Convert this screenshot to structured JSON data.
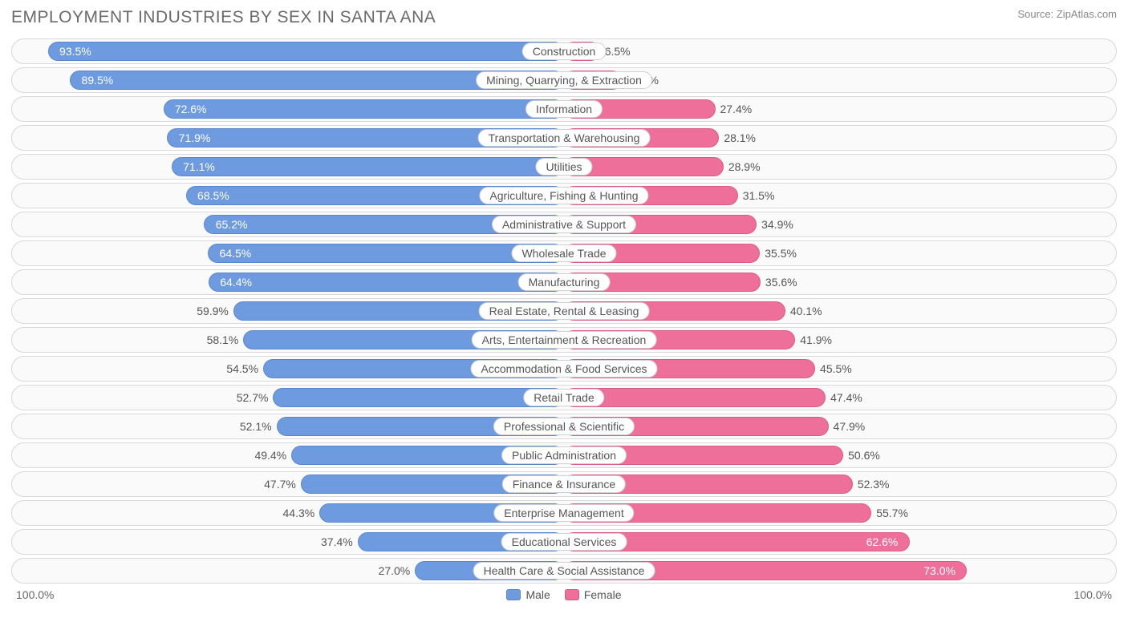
{
  "title": "EMPLOYMENT INDUSTRIES BY SEX IN SANTA ANA",
  "source": "Source: ZipAtlas.com",
  "chart": {
    "type": "diverging-bar",
    "male_color": "#6e9be0",
    "female_color": "#ef6f9b",
    "track_bg": "#fafafa",
    "track_border": "#d8d8d8",
    "label_bg": "#ffffff",
    "text_color": "#555555",
    "title_color": "#6a6a6a",
    "half_width_pct": 50,
    "axis_left": "100.0%",
    "axis_right": "100.0%",
    "legend": {
      "male": "Male",
      "female": "Female"
    },
    "rows": [
      {
        "label": "Construction",
        "male": 93.5,
        "female": 6.5,
        "male_inside": true,
        "female_inside": false
      },
      {
        "label": "Mining, Quarrying, & Extraction",
        "male": 89.5,
        "female": 10.5,
        "male_inside": true,
        "female_inside": false
      },
      {
        "label": "Information",
        "male": 72.6,
        "female": 27.4,
        "male_inside": true,
        "female_inside": false
      },
      {
        "label": "Transportation & Warehousing",
        "male": 71.9,
        "female": 28.1,
        "male_inside": true,
        "female_inside": false
      },
      {
        "label": "Utilities",
        "male": 71.1,
        "female": 28.9,
        "male_inside": true,
        "female_inside": false
      },
      {
        "label": "Agriculture, Fishing & Hunting",
        "male": 68.5,
        "female": 31.5,
        "male_inside": true,
        "female_inside": false
      },
      {
        "label": "Administrative & Support",
        "male": 65.2,
        "female": 34.9,
        "male_inside": true,
        "female_inside": false
      },
      {
        "label": "Wholesale Trade",
        "male": 64.5,
        "female": 35.5,
        "male_inside": true,
        "female_inside": false
      },
      {
        "label": "Manufacturing",
        "male": 64.4,
        "female": 35.6,
        "male_inside": true,
        "female_inside": false
      },
      {
        "label": "Real Estate, Rental & Leasing",
        "male": 59.9,
        "female": 40.1,
        "male_inside": false,
        "female_inside": false
      },
      {
        "label": "Arts, Entertainment & Recreation",
        "male": 58.1,
        "female": 41.9,
        "male_inside": false,
        "female_inside": false
      },
      {
        "label": "Accommodation & Food Services",
        "male": 54.5,
        "female": 45.5,
        "male_inside": false,
        "female_inside": false
      },
      {
        "label": "Retail Trade",
        "male": 52.7,
        "female": 47.4,
        "male_inside": false,
        "female_inside": false
      },
      {
        "label": "Professional & Scientific",
        "male": 52.1,
        "female": 47.9,
        "male_inside": false,
        "female_inside": false
      },
      {
        "label": "Public Administration",
        "male": 49.4,
        "female": 50.6,
        "male_inside": false,
        "female_inside": false
      },
      {
        "label": "Finance & Insurance",
        "male": 47.7,
        "female": 52.3,
        "male_inside": false,
        "female_inside": false
      },
      {
        "label": "Enterprise Management",
        "male": 44.3,
        "female": 55.7,
        "male_inside": false,
        "female_inside": false
      },
      {
        "label": "Educational Services",
        "male": 37.4,
        "female": 62.6,
        "male_inside": false,
        "female_inside": true
      },
      {
        "label": "Health Care & Social Assistance",
        "male": 27.0,
        "female": 73.0,
        "male_inside": false,
        "female_inside": true
      }
    ]
  }
}
